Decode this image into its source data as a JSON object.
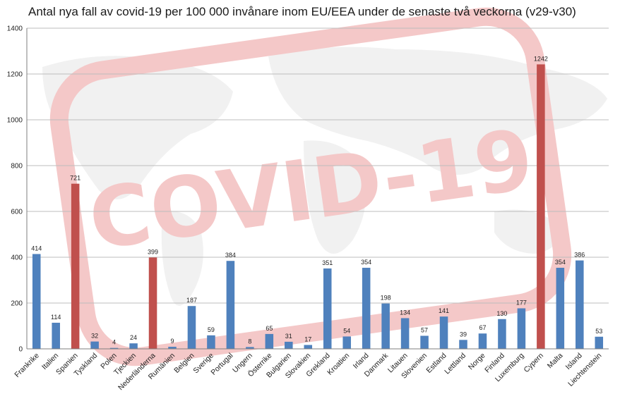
{
  "chart_data": {
    "type": "bar",
    "title": "Antal nya fall av covid-19 per 100 000 invånare inom EU/EEA under de senaste två veckorna (v29-v30)",
    "xlabel": "",
    "ylabel": "",
    "ylim": [
      0,
      1400
    ],
    "yticks": [
      0,
      200,
      400,
      600,
      800,
      1000,
      1200,
      1400
    ],
    "grid": true,
    "legend": "none",
    "categories": [
      "Frankrike",
      "Italien",
      "Spanien",
      "Tyskland",
      "Polen",
      "Tjeckien",
      "Nederländerna",
      "Rumänien",
      "Belgien",
      "Sverige",
      "Portugal",
      "Ungern",
      "Österrike",
      "Bulgarien",
      "Slovakien",
      "Grekland",
      "Kroatien",
      "Irland",
      "Danmark",
      "Litauen",
      "Slovenien",
      "Estland",
      "Lettland",
      "Norge",
      "Finland",
      "Luxemburg",
      "Cypern",
      "Malta",
      "Island",
      "Liechtenstein"
    ],
    "values": [
      414,
      114,
      721,
      32,
      4,
      24,
      399,
      9,
      187,
      59,
      384,
      8,
      65,
      31,
      17,
      351,
      54,
      354,
      198,
      134,
      57,
      141,
      39,
      67,
      130,
      177,
      1242,
      354,
      386,
      53
    ],
    "highlighted": [
      "Spanien",
      "Nederländerna",
      "Cypern"
    ],
    "colors": {
      "bar": "#4f81bd",
      "highlight": "#c0504d",
      "grid": "#bdbdbd"
    }
  },
  "watermark": {
    "text": "COVID-19",
    "color": "#e8a0a0"
  }
}
